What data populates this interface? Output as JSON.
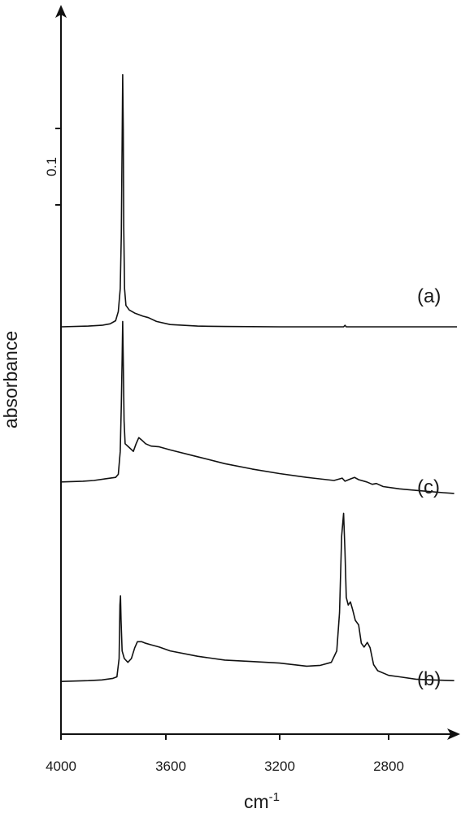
{
  "chart_data": {
    "type": "line",
    "xlabel": "cm",
    "xlabel_superscript": "-1",
    "ylabel": "absorbance",
    "xlim": [
      4000,
      2550
    ],
    "x_ticks": [
      4000,
      3600,
      3200,
      2800
    ],
    "x_tick_labels": [
      "4000",
      "3600",
      "3200",
      "2800"
    ],
    "scale_bar": {
      "label": "0.1",
      "value": 0.1
    },
    "grid": false,
    "y_units_per_0_1_absorbance": 0.1,
    "series": [
      {
        "name": "(a)",
        "offset": 0.217,
        "points": [
          [
            4000,
            0.0
          ],
          [
            3900,
            0.001
          ],
          [
            3850,
            0.002
          ],
          [
            3820,
            0.004
          ],
          [
            3800,
            0.008
          ],
          [
            3790,
            0.02
          ],
          [
            3783,
            0.05
          ],
          [
            3779,
            0.12
          ],
          [
            3776,
            0.24
          ],
          [
            3774,
            0.33
          ],
          [
            3772,
            0.26
          ],
          [
            3770,
            0.13
          ],
          [
            3767,
            0.05
          ],
          [
            3762,
            0.028
          ],
          [
            3750,
            0.022
          ],
          [
            3730,
            0.018
          ],
          [
            3700,
            0.014
          ],
          [
            3680,
            0.012
          ],
          [
            3650,
            0.007
          ],
          [
            3600,
            0.003
          ],
          [
            3500,
            0.001
          ],
          [
            3400,
            0.0005
          ],
          [
            3200,
            0.0
          ],
          [
            3000,
            0.0
          ],
          [
            2965,
            0.0
          ],
          [
            2960,
            0.002
          ],
          [
            2955,
            0.0
          ],
          [
            2900,
            0.0
          ],
          [
            2700,
            0.0
          ],
          [
            2550,
            0.0
          ]
        ]
      },
      {
        "name": "(c)",
        "offset": 0.014,
        "points": [
          [
            4000,
            0.0
          ],
          [
            3920,
            0.001
          ],
          [
            3880,
            0.002
          ],
          [
            3840,
            0.004
          ],
          [
            3800,
            0.006
          ],
          [
            3790,
            0.01
          ],
          [
            3783,
            0.04
          ],
          [
            3779,
            0.1
          ],
          [
            3776,
            0.16
          ],
          [
            3774,
            0.21
          ],
          [
            3772,
            0.16
          ],
          [
            3769,
            0.08
          ],
          [
            3765,
            0.05
          ],
          [
            3750,
            0.045
          ],
          [
            3735,
            0.04
          ],
          [
            3725,
            0.05
          ],
          [
            3715,
            0.058
          ],
          [
            3705,
            0.055
          ],
          [
            3690,
            0.05
          ],
          [
            3670,
            0.047
          ],
          [
            3640,
            0.046
          ],
          [
            3600,
            0.042
          ],
          [
            3500,
            0.033
          ],
          [
            3400,
            0.024
          ],
          [
            3300,
            0.017
          ],
          [
            3200,
            0.011
          ],
          [
            3100,
            0.006
          ],
          [
            3000,
            0.002
          ],
          [
            2970,
            0.005
          ],
          [
            2960,
            0.001
          ],
          [
            2940,
            0.004
          ],
          [
            2925,
            0.006
          ],
          [
            2910,
            0.003
          ],
          [
            2880,
            0.0
          ],
          [
            2860,
            -0.003
          ],
          [
            2845,
            -0.002
          ],
          [
            2820,
            -0.006
          ],
          [
            2760,
            -0.009
          ],
          [
            2700,
            -0.011
          ],
          [
            2600,
            -0.014
          ],
          [
            2560,
            -0.015
          ]
        ]
      },
      {
        "name": "(b)",
        "offset": -0.247,
        "points": [
          [
            4000,
            0.0
          ],
          [
            3900,
            0.001
          ],
          [
            3850,
            0.002
          ],
          [
            3810,
            0.004
          ],
          [
            3795,
            0.006
          ],
          [
            3787,
            0.03
          ],
          [
            3784,
            0.1
          ],
          [
            3782,
            0.112
          ],
          [
            3780,
            0.08
          ],
          [
            3776,
            0.04
          ],
          [
            3768,
            0.03
          ],
          [
            3755,
            0.025
          ],
          [
            3742,
            0.03
          ],
          [
            3730,
            0.044
          ],
          [
            3720,
            0.052
          ],
          [
            3705,
            0.052
          ],
          [
            3690,
            0.05
          ],
          [
            3670,
            0.048
          ],
          [
            3640,
            0.045
          ],
          [
            3600,
            0.04
          ],
          [
            3500,
            0.033
          ],
          [
            3400,
            0.028
          ],
          [
            3300,
            0.026
          ],
          [
            3200,
            0.024
          ],
          [
            3100,
            0.02
          ],
          [
            3050,
            0.021
          ],
          [
            3010,
            0.025
          ],
          [
            2990,
            0.04
          ],
          [
            2980,
            0.09
          ],
          [
            2972,
            0.19
          ],
          [
            2965,
            0.22
          ],
          [
            2960,
            0.17
          ],
          [
            2955,
            0.11
          ],
          [
            2948,
            0.1
          ],
          [
            2940,
            0.104
          ],
          [
            2932,
            0.094
          ],
          [
            2922,
            0.08
          ],
          [
            2910,
            0.074
          ],
          [
            2900,
            0.05
          ],
          [
            2890,
            0.045
          ],
          [
            2878,
            0.051
          ],
          [
            2868,
            0.044
          ],
          [
            2855,
            0.022
          ],
          [
            2840,
            0.014
          ],
          [
            2800,
            0.008
          ],
          [
            2760,
            0.006
          ],
          [
            2700,
            0.003
          ],
          [
            2640,
            0.002
          ],
          [
            2560,
            0.001
          ]
        ]
      }
    ]
  }
}
